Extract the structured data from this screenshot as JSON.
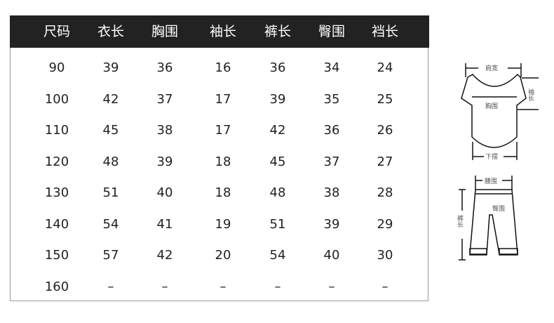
{
  "table": {
    "headers": [
      "尺码",
      "衣长",
      "胸围",
      "袖长",
      "裤长",
      "臀围",
      "裆长"
    ],
    "rows": [
      [
        "90",
        "39",
        "36",
        "16",
        "36",
        "34",
        "24"
      ],
      [
        "100",
        "42",
        "37",
        "17",
        "39",
        "35",
        "25"
      ],
      [
        "110",
        "45",
        "38",
        "17",
        "42",
        "36",
        "26"
      ],
      [
        "120",
        "48",
        "39",
        "18",
        "45",
        "37",
        "27"
      ],
      [
        "130",
        "51",
        "40",
        "18",
        "48",
        "38",
        "28"
      ],
      [
        "140",
        "54",
        "41",
        "19",
        "51",
        "39",
        "29"
      ],
      [
        "150",
        "57",
        "42",
        "20",
        "54",
        "40",
        "30"
      ],
      [
        "160",
        "–",
        "–",
        "–",
        "–",
        "–",
        "–"
      ]
    ]
  },
  "diagram": {
    "shirt": {
      "shoulder": "肩宽",
      "sleeve": "袖长",
      "chest": "胸围",
      "hem": "下摆"
    },
    "pants": {
      "waist": "腰围",
      "hip": "臀围",
      "length": "裤长"
    }
  },
  "colors": {
    "header_bg": "#222222",
    "header_text": "#ffffff",
    "text": "#222222",
    "border": "#999999"
  }
}
